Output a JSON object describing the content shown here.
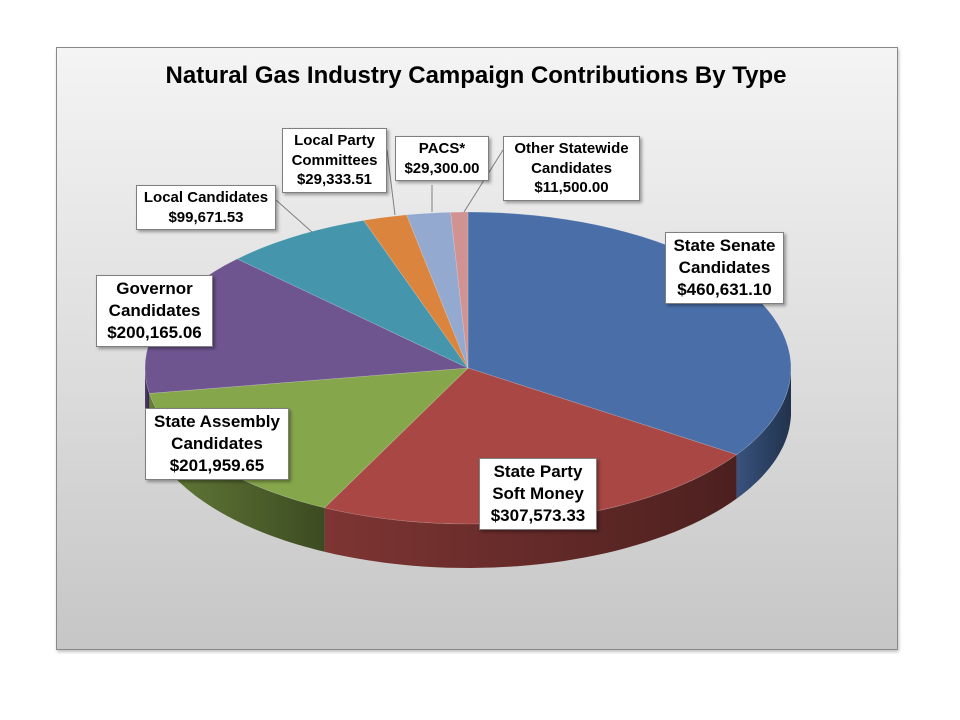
{
  "chart_data": {
    "type": "pie",
    "title": "Natural Gas Industry Campaign Contributions By Type",
    "slices": [
      {
        "name_lines": [
          "State Senate",
          "Candidates"
        ],
        "value": 460631.1,
        "value_label": "$460,631.10",
        "color": "#4A6FA8"
      },
      {
        "name_lines": [
          "State Party",
          "Soft Money"
        ],
        "value": 307573.33,
        "value_label": "$307,573.33",
        "color": "#A84744"
      },
      {
        "name_lines": [
          "State Assembly",
          "Candidates"
        ],
        "value": 201959.65,
        "value_label": "$201,959.65",
        "color": "#86A64B"
      },
      {
        "name_lines": [
          "Governor",
          "Candidates"
        ],
        "value": 200165.06,
        "value_label": "$200,165.06",
        "color": "#6F5590"
      },
      {
        "name_lines": [
          "Local Candidates"
        ],
        "value": 99671.53,
        "value_label": "$99,671.53",
        "color": "#4596AC"
      },
      {
        "name_lines": [
          "Local Party",
          "Committees"
        ],
        "value": 29333.51,
        "value_label": "$29,333.51",
        "color": "#DB843D"
      },
      {
        "name_lines": [
          "PACS*"
        ],
        "value": 29300.0,
        "value_label": "$29,300.00",
        "color": "#93A9CF"
      },
      {
        "name_lines": [
          "Other Statewide",
          "Candidates"
        ],
        "value": 11500.0,
        "value_label": "$11,500.00",
        "color": "#D19392"
      }
    ]
  }
}
